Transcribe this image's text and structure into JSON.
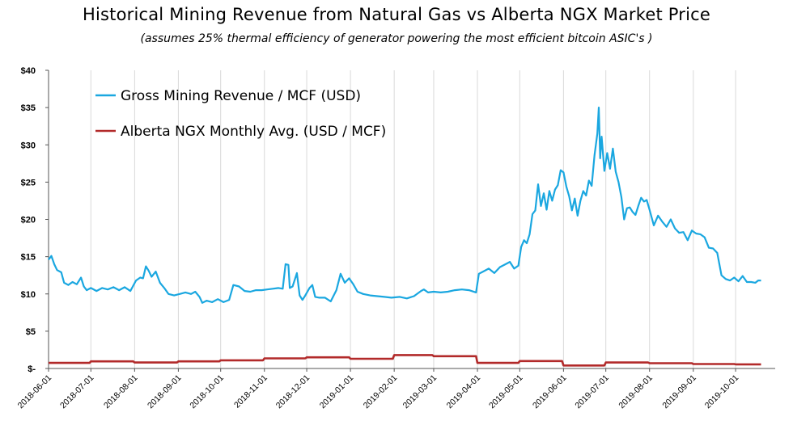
{
  "chart_data": {
    "type": "line",
    "title": "Historical Mining Revenue from Natural Gas vs Alberta NGX  Market Price",
    "subtitle": "(assumes 25% thermal efficiency of generator powering the most efficient bitcoin ASIC's )",
    "xlabel": "",
    "ylabel": "",
    "ylim": [
      0,
      40
    ],
    "y_ticks": [
      "$-",
      "$5",
      "$10",
      "$15",
      "$20",
      "$25",
      "$30",
      "$35",
      "$40"
    ],
    "x_ticks": [
      "2018-06-01",
      "2018-07-01",
      "2018-08-01",
      "2018-09-01",
      "2018-10-01",
      "2018-11-01",
      "2018-12-01",
      "2019-01-01",
      "2019-02-01",
      "2019-03-01",
      "2019-04-01",
      "2019-05-01",
      "2019-06-01",
      "2019-07-01",
      "2019-08-01",
      "2019-09-01",
      "2019-10-01"
    ],
    "grid": "vertical",
    "legend_placement": "top-left",
    "series": [
      {
        "name": "Gross Mining Revenue / MCF (USD)",
        "color": "#1aa7e0",
        "points": [
          [
            "2018-06-01",
            14.6
          ],
          [
            "2018-06-03",
            15.1
          ],
          [
            "2018-06-05",
            14.0
          ],
          [
            "2018-06-07",
            13.2
          ],
          [
            "2018-06-10",
            12.9
          ],
          [
            "2018-06-12",
            11.5
          ],
          [
            "2018-06-15",
            11.2
          ],
          [
            "2018-06-18",
            11.6
          ],
          [
            "2018-06-21",
            11.3
          ],
          [
            "2018-06-24",
            12.2
          ],
          [
            "2018-06-26",
            11.0
          ],
          [
            "2018-06-28",
            10.5
          ],
          [
            "2018-07-01",
            10.8
          ],
          [
            "2018-07-05",
            10.4
          ],
          [
            "2018-07-09",
            10.8
          ],
          [
            "2018-07-13",
            10.6
          ],
          [
            "2018-07-17",
            10.9
          ],
          [
            "2018-07-21",
            10.5
          ],
          [
            "2018-07-25",
            10.9
          ],
          [
            "2018-07-29",
            10.4
          ],
          [
            "2018-08-02",
            11.8
          ],
          [
            "2018-08-05",
            12.2
          ],
          [
            "2018-08-07",
            12.1
          ],
          [
            "2018-08-09",
            13.7
          ],
          [
            "2018-08-11",
            13.1
          ],
          [
            "2018-08-13",
            12.3
          ],
          [
            "2018-08-16",
            13.0
          ],
          [
            "2018-08-19",
            11.5
          ],
          [
            "2018-08-22",
            10.8
          ],
          [
            "2018-08-25",
            10.0
          ],
          [
            "2018-08-29",
            9.8
          ],
          [
            "2018-09-02",
            10.0
          ],
          [
            "2018-09-06",
            10.2
          ],
          [
            "2018-09-10",
            10.0
          ],
          [
            "2018-09-13",
            10.3
          ],
          [
            "2018-09-16",
            9.6
          ],
          [
            "2018-09-18",
            8.8
          ],
          [
            "2018-09-21",
            9.1
          ],
          [
            "2018-09-25",
            8.9
          ],
          [
            "2018-09-29",
            9.3
          ],
          [
            "2018-10-03",
            8.9
          ],
          [
            "2018-10-07",
            9.2
          ],
          [
            "2018-10-10",
            11.2
          ],
          [
            "2018-10-14",
            11.0
          ],
          [
            "2018-10-18",
            10.4
          ],
          [
            "2018-10-22",
            10.3
          ],
          [
            "2018-10-26",
            10.5
          ],
          [
            "2018-10-30",
            10.5
          ],
          [
            "2018-11-03",
            10.6
          ],
          [
            "2018-11-07",
            10.7
          ],
          [
            "2018-11-11",
            10.8
          ],
          [
            "2018-11-14",
            10.7
          ],
          [
            "2018-11-16",
            14.0
          ],
          [
            "2018-11-18",
            13.9
          ],
          [
            "2018-11-19",
            10.8
          ],
          [
            "2018-11-21",
            11.0
          ],
          [
            "2018-11-24",
            12.8
          ],
          [
            "2018-11-26",
            9.8
          ],
          [
            "2018-11-28",
            9.2
          ],
          [
            "2018-11-30",
            9.8
          ],
          [
            "2018-12-03",
            10.8
          ],
          [
            "2018-12-05",
            11.2
          ],
          [
            "2018-12-07",
            9.6
          ],
          [
            "2018-12-10",
            9.5
          ],
          [
            "2018-12-14",
            9.5
          ],
          [
            "2018-12-18",
            9.0
          ],
          [
            "2018-12-22",
            10.5
          ],
          [
            "2018-12-25",
            12.7
          ],
          [
            "2018-12-28",
            11.5
          ],
          [
            "2018-12-31",
            12.1
          ],
          [
            "2019-01-03",
            11.3
          ],
          [
            "2019-01-06",
            10.3
          ],
          [
            "2019-01-10",
            10.0
          ],
          [
            "2019-01-15",
            9.8
          ],
          [
            "2019-01-20",
            9.7
          ],
          [
            "2019-01-25",
            9.6
          ],
          [
            "2019-01-30",
            9.5
          ],
          [
            "2019-02-05",
            9.6
          ],
          [
            "2019-02-10",
            9.4
          ],
          [
            "2019-02-15",
            9.7
          ],
          [
            "2019-02-20",
            10.4
          ],
          [
            "2019-02-22",
            10.6
          ],
          [
            "2019-02-25",
            10.2
          ],
          [
            "2019-03-01",
            10.3
          ],
          [
            "2019-03-06",
            10.2
          ],
          [
            "2019-03-11",
            10.3
          ],
          [
            "2019-03-16",
            10.5
          ],
          [
            "2019-03-21",
            10.6
          ],
          [
            "2019-03-26",
            10.5
          ],
          [
            "2019-03-31",
            10.2
          ],
          [
            "2019-04-02",
            12.7
          ],
          [
            "2019-04-05",
            13.0
          ],
          [
            "2019-04-09",
            13.4
          ],
          [
            "2019-04-13",
            12.8
          ],
          [
            "2019-04-17",
            13.6
          ],
          [
            "2019-04-21",
            14.0
          ],
          [
            "2019-04-24",
            14.3
          ],
          [
            "2019-04-27",
            13.4
          ],
          [
            "2019-04-30",
            13.8
          ],
          [
            "2019-05-02",
            16.3
          ],
          [
            "2019-05-04",
            17.2
          ],
          [
            "2019-05-06",
            16.8
          ],
          [
            "2019-05-08",
            18.0
          ],
          [
            "2019-05-10",
            20.7
          ],
          [
            "2019-05-12",
            21.2
          ],
          [
            "2019-05-14",
            24.7
          ],
          [
            "2019-05-16",
            21.8
          ],
          [
            "2019-05-18",
            23.5
          ],
          [
            "2019-05-20",
            21.3
          ],
          [
            "2019-05-22",
            23.8
          ],
          [
            "2019-05-24",
            22.5
          ],
          [
            "2019-05-26",
            24.0
          ],
          [
            "2019-05-28",
            24.6
          ],
          [
            "2019-05-30",
            26.6
          ],
          [
            "2019-06-01",
            26.3
          ],
          [
            "2019-06-03",
            24.4
          ],
          [
            "2019-06-05",
            23.1
          ],
          [
            "2019-06-07",
            21.2
          ],
          [
            "2019-06-09",
            22.8
          ],
          [
            "2019-06-11",
            20.5
          ],
          [
            "2019-06-13",
            22.5
          ],
          [
            "2019-06-15",
            23.8
          ],
          [
            "2019-06-17",
            23.2
          ],
          [
            "2019-06-19",
            25.2
          ],
          [
            "2019-06-21",
            24.5
          ],
          [
            "2019-06-23",
            28.6
          ],
          [
            "2019-06-25",
            31.5
          ],
          [
            "2019-06-26",
            35.0
          ],
          [
            "2019-06-27",
            28.2
          ],
          [
            "2019-06-28",
            31.1
          ],
          [
            "2019-06-30",
            26.5
          ],
          [
            "2019-07-02",
            28.9
          ],
          [
            "2019-07-04",
            26.8
          ],
          [
            "2019-07-06",
            29.5
          ],
          [
            "2019-07-08",
            26.4
          ],
          [
            "2019-07-10",
            25.0
          ],
          [
            "2019-07-12",
            23.0
          ],
          [
            "2019-07-14",
            20.0
          ],
          [
            "2019-07-16",
            21.5
          ],
          [
            "2019-07-18",
            21.6
          ],
          [
            "2019-07-20",
            21.0
          ],
          [
            "2019-07-22",
            20.6
          ],
          [
            "2019-07-24",
            21.8
          ],
          [
            "2019-07-26",
            22.9
          ],
          [
            "2019-07-28",
            22.4
          ],
          [
            "2019-07-30",
            22.6
          ],
          [
            "2019-08-01",
            21.3
          ],
          [
            "2019-08-04",
            19.2
          ],
          [
            "2019-08-07",
            20.5
          ],
          [
            "2019-08-10",
            19.7
          ],
          [
            "2019-08-13",
            19.0
          ],
          [
            "2019-08-16",
            20.0
          ],
          [
            "2019-08-19",
            18.8
          ],
          [
            "2019-08-22",
            18.2
          ],
          [
            "2019-08-25",
            18.3
          ],
          [
            "2019-08-28",
            17.2
          ],
          [
            "2019-08-31",
            18.5
          ],
          [
            "2019-09-03",
            18.1
          ],
          [
            "2019-09-06",
            18.0
          ],
          [
            "2019-09-09",
            17.6
          ],
          [
            "2019-09-12",
            16.2
          ],
          [
            "2019-09-15",
            16.1
          ],
          [
            "2019-09-18",
            15.5
          ],
          [
            "2019-09-21",
            12.5
          ],
          [
            "2019-09-24",
            12.0
          ],
          [
            "2019-09-27",
            11.8
          ],
          [
            "2019-09-30",
            12.2
          ],
          [
            "2019-10-03",
            11.7
          ],
          [
            "2019-10-06",
            12.4
          ],
          [
            "2019-10-09",
            11.6
          ],
          [
            "2019-10-12",
            11.6
          ],
          [
            "2019-10-15",
            11.5
          ],
          [
            "2019-10-17",
            11.8
          ],
          [
            "2019-10-19",
            11.8
          ]
        ]
      },
      {
        "name": "Alberta NGX Monthly Avg. (USD / MCF)",
        "color": "#b22a2a",
        "points": [
          [
            "2018-06-01",
            0.75
          ],
          [
            "2018-06-30",
            0.75
          ],
          [
            "2018-07-01",
            0.95
          ],
          [
            "2018-07-31",
            0.95
          ],
          [
            "2018-08-01",
            0.8
          ],
          [
            "2018-08-31",
            0.8
          ],
          [
            "2018-09-01",
            0.95
          ],
          [
            "2018-09-30",
            0.95
          ],
          [
            "2018-10-01",
            1.1
          ],
          [
            "2018-10-31",
            1.1
          ],
          [
            "2018-11-01",
            1.35
          ],
          [
            "2018-11-30",
            1.35
          ],
          [
            "2018-12-01",
            1.5
          ],
          [
            "2018-12-31",
            1.5
          ],
          [
            "2019-01-01",
            1.3
          ],
          [
            "2019-01-31",
            1.3
          ],
          [
            "2019-02-01",
            1.8
          ],
          [
            "2019-02-28",
            1.8
          ],
          [
            "2019-03-01",
            1.65
          ],
          [
            "2019-03-31",
            1.65
          ],
          [
            "2019-04-01",
            0.75
          ],
          [
            "2019-04-30",
            0.75
          ],
          [
            "2019-05-01",
            1.0
          ],
          [
            "2019-05-31",
            1.0
          ],
          [
            "2019-06-01",
            0.4
          ],
          [
            "2019-06-30",
            0.4
          ],
          [
            "2019-07-01",
            0.8
          ],
          [
            "2019-07-31",
            0.8
          ],
          [
            "2019-08-01",
            0.7
          ],
          [
            "2019-08-31",
            0.7
          ],
          [
            "2019-09-01",
            0.6
          ],
          [
            "2019-09-30",
            0.6
          ],
          [
            "2019-10-01",
            0.55
          ],
          [
            "2019-10-19",
            0.55
          ]
        ]
      }
    ]
  }
}
